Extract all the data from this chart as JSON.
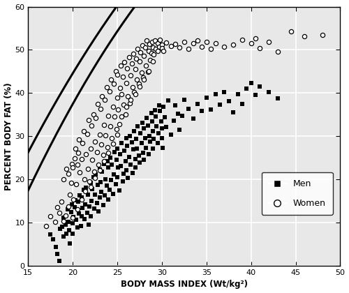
{
  "xlabel": "BODY MASS INDEX (Wt/kg²)",
  "ylabel": "PERCENT BODY FAT (%)",
  "xlim": [
    15,
    50
  ],
  "ylim": [
    0,
    60
  ],
  "xticks": [
    15,
    20,
    25,
    30,
    35,
    40,
    45,
    50
  ],
  "yticks": [
    0,
    10,
    20,
    30,
    40,
    50,
    60
  ],
  "background_color": "#e8e8e8",
  "men_color": "#000000",
  "women_color": "#000000",
  "curve_color": "#000000",
  "grid_color": "#ffffff",
  "legend_box_color": "#ffffff",
  "men_curve": {
    "a": -0.0632,
    "b": 6.212,
    "c": -61.5
  },
  "women_curve": {
    "a": -0.0514,
    "b": 5.456,
    "c": -44.0
  },
  "men_scatter": [
    [
      17.5,
      7.2
    ],
    [
      17.8,
      6.1
    ],
    [
      18.1,
      4.3
    ],
    [
      18.3,
      2.8
    ],
    [
      18.5,
      1.2
    ],
    [
      18.6,
      8.5
    ],
    [
      18.8,
      9.1
    ],
    [
      19.0,
      6.8
    ],
    [
      19.0,
      11.2
    ],
    [
      19.2,
      9.5
    ],
    [
      19.3,
      7.4
    ],
    [
      19.4,
      13.1
    ],
    [
      19.5,
      10.2
    ],
    [
      19.6,
      8.3
    ],
    [
      19.7,
      5.1
    ],
    [
      19.8,
      12.4
    ],
    [
      19.9,
      14.2
    ],
    [
      20.0,
      9.8
    ],
    [
      20.0,
      7.5
    ],
    [
      20.1,
      11.3
    ],
    [
      20.2,
      13.6
    ],
    [
      20.3,
      15.2
    ],
    [
      20.4,
      10.7
    ],
    [
      20.5,
      8.9
    ],
    [
      20.6,
      14.8
    ],
    [
      20.7,
      12.1
    ],
    [
      20.8,
      16.3
    ],
    [
      20.9,
      9.2
    ],
    [
      21.0,
      11.5
    ],
    [
      21.0,
      15.8
    ],
    [
      21.1,
      13.4
    ],
    [
      21.2,
      17.6
    ],
    [
      21.3,
      10.9
    ],
    [
      21.4,
      14.2
    ],
    [
      21.5,
      18.1
    ],
    [
      21.6,
      12.3
    ],
    [
      21.7,
      16.5
    ],
    [
      21.8,
      9.6
    ],
    [
      21.9,
      13.8
    ],
    [
      22.0,
      19.2
    ],
    [
      22.0,
      11.4
    ],
    [
      22.1,
      15.1
    ],
    [
      22.2,
      17.8
    ],
    [
      22.3,
      20.5
    ],
    [
      22.4,
      13.2
    ],
    [
      22.5,
      16.4
    ],
    [
      22.6,
      21.1
    ],
    [
      22.7,
      14.5
    ],
    [
      22.8,
      18.7
    ],
    [
      22.9,
      12.6
    ],
    [
      23.0,
      15.9
    ],
    [
      23.0,
      22.3
    ],
    [
      23.1,
      19.4
    ],
    [
      23.2,
      17.2
    ],
    [
      23.3,
      21.8
    ],
    [
      23.4,
      14.1
    ],
    [
      23.5,
      23.6
    ],
    [
      23.6,
      16.3
    ],
    [
      23.7,
      20.1
    ],
    [
      23.8,
      18.5
    ],
    [
      23.9,
      24.2
    ],
    [
      24.0,
      15.4
    ],
    [
      24.0,
      22.7
    ],
    [
      24.1,
      17.6
    ],
    [
      24.2,
      25.1
    ],
    [
      24.3,
      19.8
    ],
    [
      24.4,
      23.4
    ],
    [
      24.5,
      16.7
    ],
    [
      24.6,
      21.2
    ],
    [
      24.7,
      26.3
    ],
    [
      24.8,
      18.9
    ],
    [
      24.9,
      24.6
    ],
    [
      25.0,
      20.5
    ],
    [
      25.0,
      27.2
    ],
    [
      25.1,
      22.8
    ],
    [
      25.2,
      17.4
    ],
    [
      25.3,
      25.9
    ],
    [
      25.4,
      23.1
    ],
    [
      25.5,
      28.4
    ],
    [
      25.6,
      19.6
    ],
    [
      25.7,
      21.4
    ],
    [
      25.8,
      26.7
    ],
    [
      25.9,
      24.3
    ],
    [
      26.0,
      22.1
    ],
    [
      26.0,
      29.5
    ],
    [
      26.1,
      27.8
    ],
    [
      26.2,
      20.3
    ],
    [
      26.3,
      25.2
    ],
    [
      26.4,
      30.1
    ],
    [
      26.5,
      23.4
    ],
    [
      26.6,
      28.6
    ],
    [
      26.7,
      21.5
    ],
    [
      26.8,
      26.9
    ],
    [
      26.9,
      31.2
    ],
    [
      27.0,
      24.7
    ],
    [
      27.0,
      22.8
    ],
    [
      27.1,
      29.4
    ],
    [
      27.2,
      27.1
    ],
    [
      27.3,
      32.3
    ],
    [
      27.4,
      25.6
    ],
    [
      27.5,
      23.9
    ],
    [
      27.6,
      30.7
    ],
    [
      27.7,
      28.4
    ],
    [
      27.8,
      33.1
    ],
    [
      27.9,
      26.2
    ],
    [
      28.0,
      24.5
    ],
    [
      28.0,
      31.8
    ],
    [
      28.1,
      29.6
    ],
    [
      28.2,
      27.3
    ],
    [
      28.3,
      34.2
    ],
    [
      28.4,
      32.5
    ],
    [
      28.5,
      25.8
    ],
    [
      28.6,
      30.1
    ],
    [
      28.7,
      28.7
    ],
    [
      28.8,
      35.3
    ],
    [
      28.9,
      33.4
    ],
    [
      29.0,
      27.1
    ],
    [
      29.0,
      31.2
    ],
    [
      29.1,
      29.4
    ],
    [
      29.2,
      36.1
    ],
    [
      29.3,
      34.6
    ],
    [
      29.4,
      32.3
    ],
    [
      29.5,
      28.5
    ],
    [
      29.6,
      30.7
    ],
    [
      29.7,
      37.2
    ],
    [
      29.8,
      35.8
    ],
    [
      29.9,
      33.5
    ],
    [
      30.0,
      29.6
    ],
    [
      30.0,
      31.8
    ],
    [
      30.1,
      27.3
    ],
    [
      30.2,
      36.9
    ],
    [
      30.3,
      34.4
    ],
    [
      30.5,
      32.1
    ],
    [
      30.7,
      38.3
    ],
    [
      31.0,
      30.4
    ],
    [
      31.3,
      33.6
    ],
    [
      31.5,
      37.1
    ],
    [
      31.8,
      35.2
    ],
    [
      32.0,
      31.5
    ],
    [
      32.3,
      34.8
    ],
    [
      32.5,
      38.4
    ],
    [
      33.0,
      36.3
    ],
    [
      33.5,
      34.1
    ],
    [
      34.0,
      37.5
    ],
    [
      34.5,
      35.8
    ],
    [
      35.0,
      38.9
    ],
    [
      35.5,
      36.2
    ],
    [
      36.0,
      39.7
    ],
    [
      36.5,
      37.3
    ],
    [
      37.0,
      40.2
    ],
    [
      37.5,
      38.1
    ],
    [
      38.0,
      35.6
    ],
    [
      38.5,
      39.8
    ],
    [
      39.0,
      37.4
    ],
    [
      39.5,
      41.1
    ],
    [
      40.0,
      42.3
    ],
    [
      40.5,
      39.6
    ],
    [
      41.0,
      41.5
    ],
    [
      42.0,
      40.2
    ],
    [
      43.0,
      38.7
    ]
  ],
  "women_scatter": [
    [
      17.0,
      9.2
    ],
    [
      17.5,
      11.4
    ],
    [
      18.0,
      10.1
    ],
    [
      18.3,
      13.5
    ],
    [
      18.5,
      12.2
    ],
    [
      18.7,
      14.8
    ],
    [
      19.0,
      10.3
    ],
    [
      19.0,
      20.1
    ],
    [
      19.2,
      11.6
    ],
    [
      19.3,
      22.4
    ],
    [
      19.5,
      13.8
    ],
    [
      19.5,
      21.3
    ],
    [
      19.7,
      16.4
    ],
    [
      19.8,
      19.2
    ],
    [
      19.9,
      23.6
    ],
    [
      20.0,
      11.2
    ],
    [
      20.0,
      22.7
    ],
    [
      20.1,
      15.3
    ],
    [
      20.2,
      24.8
    ],
    [
      20.3,
      27.1
    ],
    [
      20.4,
      18.9
    ],
    [
      20.5,
      13.1
    ],
    [
      20.5,
      23.4
    ],
    [
      20.6,
      26.2
    ],
    [
      20.7,
      29.3
    ],
    [
      20.8,
      21.6
    ],
    [
      21.0,
      15.4
    ],
    [
      21.0,
      24.7
    ],
    [
      21.1,
      28.4
    ],
    [
      21.2,
      31.2
    ],
    [
      21.3,
      20.1
    ],
    [
      21.4,
      17.3
    ],
    [
      21.5,
      25.8
    ],
    [
      21.6,
      30.5
    ],
    [
      21.7,
      22.4
    ],
    [
      21.8,
      33.7
    ],
    [
      21.9,
      19.6
    ],
    [
      22.0,
      18.2
    ],
    [
      22.0,
      27.1
    ],
    [
      22.1,
      32.4
    ],
    [
      22.2,
      24.6
    ],
    [
      22.3,
      35.1
    ],
    [
      22.4,
      21.8
    ],
    [
      22.5,
      20.3
    ],
    [
      22.5,
      28.7
    ],
    [
      22.6,
      34.2
    ],
    [
      22.7,
      26.3
    ],
    [
      22.8,
      37.4
    ],
    [
      22.9,
      23.5
    ],
    [
      23.0,
      22.1
    ],
    [
      23.0,
      30.4
    ],
    [
      23.1,
      36.3
    ],
    [
      23.2,
      28.1
    ],
    [
      23.3,
      39.2
    ],
    [
      23.4,
      25.7
    ],
    [
      23.5,
      24.3
    ],
    [
      23.5,
      32.6
    ],
    [
      23.6,
      38.5
    ],
    [
      23.7,
      30.2
    ],
    [
      23.8,
      41.3
    ],
    [
      23.9,
      27.4
    ],
    [
      24.0,
      26.1
    ],
    [
      24.0,
      34.7
    ],
    [
      24.1,
      40.4
    ],
    [
      24.2,
      32.3
    ],
    [
      24.3,
      43.2
    ],
    [
      24.4,
      29.6
    ],
    [
      24.5,
      28.2
    ],
    [
      24.5,
      36.8
    ],
    [
      24.6,
      42.1
    ],
    [
      24.7,
      34.5
    ],
    [
      24.8,
      45.1
    ],
    [
      24.9,
      31.7
    ],
    [
      25.0,
      30.4
    ],
    [
      25.0,
      38.9
    ],
    [
      25.0,
      44.3
    ],
    [
      25.1,
      36.2
    ],
    [
      25.2,
      32.8
    ],
    [
      25.3,
      41.2
    ],
    [
      25.4,
      46.4
    ],
    [
      25.5,
      34.6
    ],
    [
      25.5,
      39.7
    ],
    [
      25.6,
      43.8
    ],
    [
      25.7,
      37.3
    ],
    [
      25.8,
      47.2
    ],
    [
      25.9,
      35.1
    ],
    [
      26.0,
      36.8
    ],
    [
      26.0,
      42.4
    ],
    [
      26.1,
      45.7
    ],
    [
      26.2,
      39.2
    ],
    [
      26.3,
      48.3
    ],
    [
      26.4,
      37.6
    ],
    [
      26.5,
      38.4
    ],
    [
      26.5,
      44.1
    ],
    [
      26.6,
      46.8
    ],
    [
      26.7,
      41.3
    ],
    [
      26.8,
      49.1
    ],
    [
      26.9,
      40.2
    ],
    [
      27.0,
      39.7
    ],
    [
      27.0,
      45.6
    ],
    [
      27.1,
      47.9
    ],
    [
      27.2,
      43.2
    ],
    [
      27.3,
      50.2
    ],
    [
      27.4,
      42.1
    ],
    [
      27.5,
      41.5
    ],
    [
      27.5,
      47.3
    ],
    [
      27.6,
      49.4
    ],
    [
      27.7,
      44.8
    ],
    [
      27.8,
      51.1
    ],
    [
      27.9,
      43.6
    ],
    [
      28.0,
      43.2
    ],
    [
      28.0,
      48.7
    ],
    [
      28.1,
      50.5
    ],
    [
      28.2,
      46.3
    ],
    [
      28.3,
      52.2
    ],
    [
      28.4,
      44.9
    ],
    [
      28.5,
      45.1
    ],
    [
      28.5,
      49.8
    ],
    [
      28.6,
      51.4
    ],
    [
      28.7,
      47.6
    ],
    [
      28.8,
      49.2
    ],
    [
      28.9,
      51.8
    ],
    [
      29.0,
      47.3
    ],
    [
      29.0,
      50.6
    ],
    [
      29.1,
      48.9
    ],
    [
      29.2,
      52.1
    ],
    [
      29.3,
      50.3
    ],
    [
      29.5,
      49.7
    ],
    [
      29.5,
      51.5
    ],
    [
      29.7,
      50.8
    ],
    [
      29.8,
      52.4
    ],
    [
      30.0,
      51.2
    ],
    [
      30.0,
      50.4
    ],
    [
      30.2,
      49.8
    ],
    [
      30.5,
      51.7
    ],
    [
      31.0,
      50.9
    ],
    [
      31.5,
      51.3
    ],
    [
      32.0,
      50.6
    ],
    [
      32.5,
      51.8
    ],
    [
      33.0,
      50.2
    ],
    [
      33.5,
      51.5
    ],
    [
      34.0,
      52.1
    ],
    [
      34.5,
      50.7
    ],
    [
      35.0,
      51.9
    ],
    [
      35.5,
      50.3
    ],
    [
      36.0,
      51.6
    ],
    [
      37.0,
      50.8
    ],
    [
      38.0,
      51.2
    ],
    [
      39.0,
      52.3
    ],
    [
      40.0,
      51.5
    ],
    [
      40.5,
      52.7
    ],
    [
      41.0,
      50.4
    ],
    [
      42.0,
      51.8
    ],
    [
      43.0,
      49.6
    ],
    [
      44.5,
      54.2
    ],
    [
      46.0,
      53.1
    ],
    [
      48.0,
      53.4
    ]
  ]
}
